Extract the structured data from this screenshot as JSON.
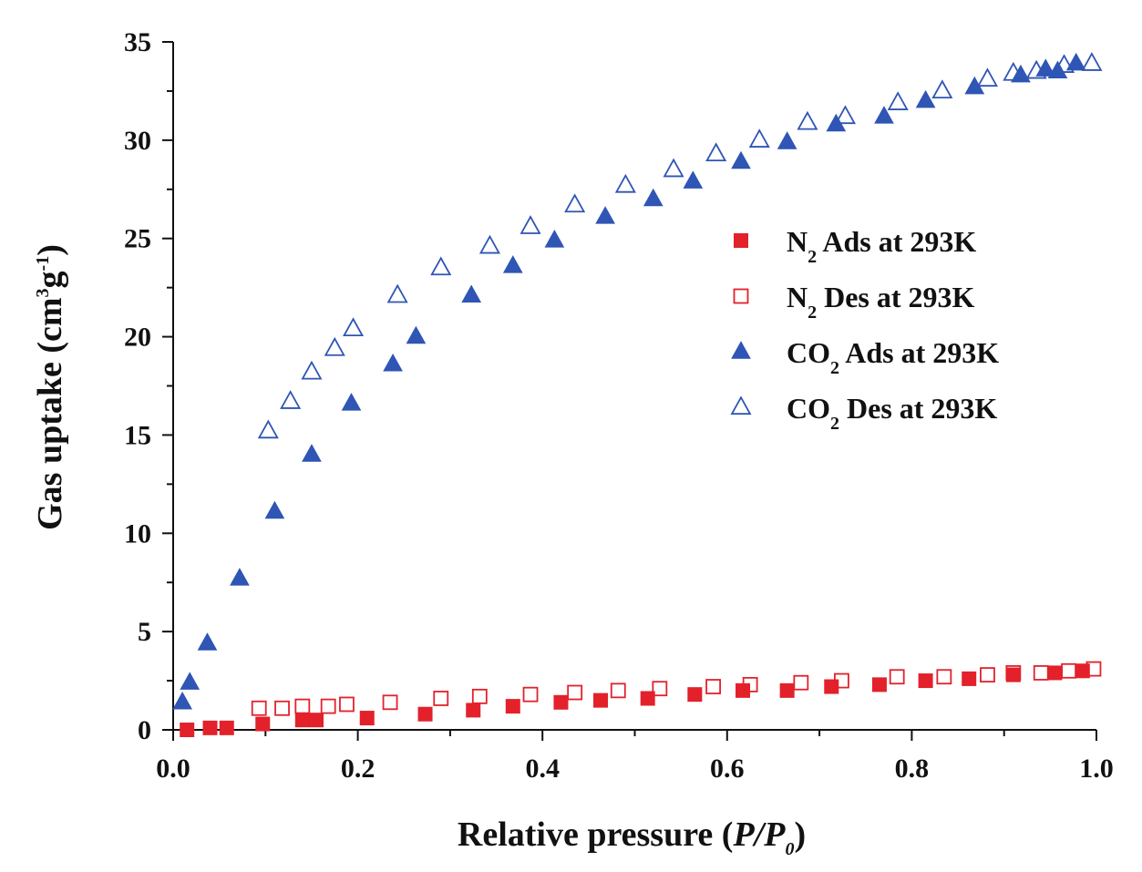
{
  "chart_data": {
    "type": "scatter",
    "xlabel": "Relative pressure (P/P0)",
    "xlabel_parts": {
      "prefix": "Relative pressure (",
      "p": "P",
      "slash": "/P",
      "sub": "0",
      "suffix": ")"
    },
    "ylabel": "Gas uptake (cm3g-1)",
    "ylabel_parts": {
      "prefix": "Gas uptake (cm",
      "sup3": "3",
      "g": "g",
      "sup_neg1": "-1",
      "suffix": ")"
    },
    "xlim": [
      0.0,
      1.0
    ],
    "ylim": [
      0,
      35
    ],
    "xticks": [
      "0.0",
      "0.2",
      "0.4",
      "0.6",
      "0.8",
      "1.0"
    ],
    "yticks": [
      "0",
      "5",
      "10",
      "15",
      "20",
      "25",
      "30",
      "35"
    ],
    "grid": false,
    "legend_position": "right",
    "series": [
      {
        "name": "N2 Ads at 293K",
        "label_parts": [
          "N",
          "2",
          " Ads at 293K"
        ],
        "marker": "square-filled",
        "color": "#e3212b",
        "x": [
          0.015,
          0.04,
          0.058,
          0.097,
          0.14,
          0.155,
          0.21,
          0.273,
          0.325,
          0.368,
          0.42,
          0.463,
          0.514,
          0.565,
          0.617,
          0.665,
          0.713,
          0.765,
          0.815,
          0.862,
          0.91,
          0.955,
          0.985
        ],
        "y": [
          0.0,
          0.1,
          0.1,
          0.3,
          0.5,
          0.5,
          0.6,
          0.8,
          1.0,
          1.2,
          1.4,
          1.5,
          1.6,
          1.8,
          2.0,
          2.0,
          2.2,
          2.3,
          2.5,
          2.6,
          2.8,
          2.9,
          3.0
        ]
      },
      {
        "name": "N2 Des at 293K",
        "label_parts": [
          "N",
          "2",
          " Des at 293K"
        ],
        "marker": "square-open",
        "color": "#e3212b",
        "x": [
          0.093,
          0.118,
          0.14,
          0.168,
          0.188,
          0.235,
          0.29,
          0.332,
          0.387,
          0.435,
          0.482,
          0.527,
          0.585,
          0.625,
          0.68,
          0.724,
          0.784,
          0.835,
          0.882,
          0.91,
          0.94,
          0.97,
          0.997
        ],
        "y": [
          1.1,
          1.1,
          1.2,
          1.2,
          1.3,
          1.4,
          1.6,
          1.7,
          1.8,
          1.9,
          2.0,
          2.1,
          2.2,
          2.3,
          2.4,
          2.5,
          2.7,
          2.7,
          2.8,
          2.9,
          2.9,
          3.0,
          3.1
        ]
      },
      {
        "name": "CO2 Ads at 293K",
        "label_parts": [
          "CO",
          "2",
          "  Ads at 293K"
        ],
        "marker": "triangle-filled",
        "color": "#2f55b5",
        "x": [
          0.01,
          0.018,
          0.037,
          0.072,
          0.11,
          0.15,
          0.193,
          0.238,
          0.263,
          0.323,
          0.368,
          0.413,
          0.468,
          0.52,
          0.563,
          0.615,
          0.665,
          0.718,
          0.77,
          0.815,
          0.868,
          0.918,
          0.945,
          0.958,
          0.978
        ],
        "y": [
          1.4,
          2.4,
          4.4,
          7.7,
          11.1,
          14.0,
          16.6,
          18.6,
          20.0,
          22.1,
          23.6,
          24.9,
          26.1,
          27.0,
          27.9,
          28.9,
          29.9,
          30.8,
          31.2,
          32.0,
          32.7,
          33.3,
          33.6,
          33.5,
          33.9
        ]
      },
      {
        "name": "CO2 Des at 293K",
        "label_parts": [
          "CO",
          "2",
          " Des at 293K"
        ],
        "marker": "triangle-open",
        "color": "#2f55b5",
        "x": [
          0.103,
          0.127,
          0.15,
          0.175,
          0.195,
          0.243,
          0.29,
          0.343,
          0.387,
          0.435,
          0.49,
          0.542,
          0.588,
          0.635,
          0.687,
          0.728,
          0.785,
          0.833,
          0.882,
          0.91,
          0.935,
          0.965,
          0.995
        ],
        "y": [
          15.2,
          16.7,
          18.2,
          19.4,
          20.4,
          22.1,
          23.5,
          24.6,
          25.6,
          26.7,
          27.7,
          28.5,
          29.3,
          30.0,
          30.9,
          31.2,
          31.9,
          32.5,
          33.1,
          33.4,
          33.5,
          33.8,
          33.9
        ]
      }
    ]
  }
}
